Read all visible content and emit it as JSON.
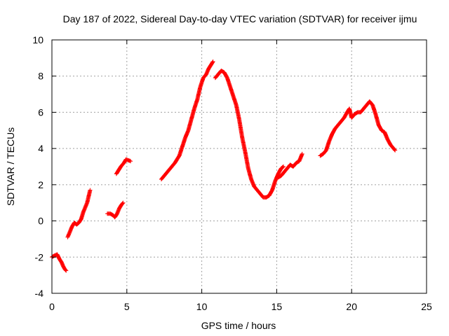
{
  "chart_data": {
    "type": "scatter",
    "title": "Day 187 of 2022, Sidereal Day-to-day VTEC variation (SDTVAR) for receiver ijmu",
    "xlabel": "GPS time / hours",
    "ylabel": "SDTVAR / TECUs",
    "xlim": [
      0,
      25
    ],
    "ylim": [
      -4,
      10
    ],
    "xticks": [
      0,
      5,
      10,
      15,
      20,
      25
    ],
    "yticks": [
      -4,
      -2,
      0,
      2,
      4,
      6,
      8,
      10
    ],
    "xtick_labels": [
      "0",
      "5",
      "10",
      "15",
      "20",
      "25"
    ],
    "ytick_labels": [
      "-4",
      "-2",
      "0",
      "2",
      "4",
      "6",
      "8",
      "10"
    ],
    "grid": true,
    "marker": "plus",
    "colors": {
      "series": "#ff0000",
      "axes": "#000000",
      "grid": "#a0a0a0"
    },
    "series": [
      {
        "name": "SDTVAR",
        "segments": [
          [
            [
              0.0,
              -2.0
            ],
            [
              0.2,
              -1.9
            ],
            [
              0.35,
              -1.85
            ],
            [
              0.5,
              -2.1
            ],
            [
              0.65,
              -2.3
            ],
            [
              0.75,
              -2.5
            ],
            [
              0.85,
              -2.65
            ],
            [
              0.95,
              -2.75
            ]
          ],
          [
            [
              1.05,
              -0.9
            ],
            [
              1.2,
              -0.6
            ],
            [
              1.35,
              -0.3
            ],
            [
              1.5,
              -0.1
            ],
            [
              1.65,
              -0.2
            ],
            [
              1.8,
              -0.1
            ],
            [
              1.95,
              0.1
            ],
            [
              2.1,
              0.5
            ],
            [
              2.25,
              0.8
            ],
            [
              2.35,
              1.0
            ],
            [
              2.45,
              1.35
            ],
            [
              2.55,
              1.7
            ]
          ],
          [
            [
              3.7,
              0.4
            ],
            [
              3.9,
              0.4
            ],
            [
              4.1,
              0.3
            ],
            [
              4.2,
              0.2
            ],
            [
              4.35,
              0.4
            ],
            [
              4.5,
              0.7
            ],
            [
              4.65,
              0.9
            ],
            [
              4.75,
              1.0
            ]
          ],
          [
            [
              4.3,
              2.6
            ],
            [
              4.45,
              2.8
            ],
            [
              4.6,
              3.0
            ],
            [
              4.8,
              3.2
            ],
            [
              4.95,
              3.4
            ],
            [
              5.1,
              3.35
            ],
            [
              5.25,
              3.3
            ]
          ],
          [
            [
              7.3,
              2.3
            ],
            [
              7.6,
              2.6
            ],
            [
              7.9,
              2.9
            ],
            [
              8.2,
              3.2
            ],
            [
              8.5,
              3.6
            ],
            [
              8.7,
              4.1
            ],
            [
              8.9,
              4.6
            ],
            [
              9.1,
              5.0
            ],
            [
              9.3,
              5.6
            ],
            [
              9.5,
              6.2
            ],
            [
              9.7,
              6.7
            ],
            [
              9.9,
              7.4
            ],
            [
              10.1,
              7.9
            ],
            [
              10.3,
              8.1
            ],
            [
              10.45,
              8.4
            ],
            [
              10.6,
              8.6
            ],
            [
              10.75,
              8.8
            ]
          ],
          [
            [
              10.9,
              7.9
            ],
            [
              11.1,
              8.1
            ],
            [
              11.3,
              8.3
            ],
            [
              11.5,
              8.2
            ],
            [
              11.7,
              7.9
            ],
            [
              11.9,
              7.4
            ],
            [
              12.1,
              6.9
            ],
            [
              12.3,
              6.4
            ],
            [
              12.5,
              5.6
            ],
            [
              12.7,
              4.6
            ],
            [
              12.9,
              3.8
            ],
            [
              13.1,
              2.9
            ],
            [
              13.3,
              2.3
            ],
            [
              13.5,
              1.9
            ],
            [
              13.7,
              1.7
            ],
            [
              13.9,
              1.5
            ],
            [
              14.1,
              1.3
            ],
            [
              14.3,
              1.3
            ],
            [
              14.5,
              1.4
            ],
            [
              14.7,
              1.7
            ],
            [
              14.9,
              2.2
            ],
            [
              15.1,
              2.6
            ],
            [
              15.3,
              2.9
            ],
            [
              15.45,
              3.0
            ]
          ],
          [
            [
              15.1,
              2.4
            ],
            [
              15.3,
              2.5
            ],
            [
              15.5,
              2.7
            ],
            [
              15.7,
              2.9
            ],
            [
              15.9,
              3.1
            ],
            [
              16.1,
              3.0
            ],
            [
              16.3,
              3.2
            ],
            [
              16.5,
              3.3
            ],
            [
              16.6,
              3.5
            ],
            [
              16.7,
              3.7
            ]
          ],
          [
            [
              17.9,
              3.6
            ],
            [
              18.1,
              3.7
            ],
            [
              18.3,
              3.9
            ],
            [
              18.5,
              4.4
            ],
            [
              18.7,
              4.8
            ],
            [
              18.9,
              5.1
            ],
            [
              19.1,
              5.3
            ],
            [
              19.3,
              5.5
            ],
            [
              19.5,
              5.7
            ],
            [
              19.7,
              6.0
            ],
            [
              19.85,
              6.2
            ],
            [
              20.0,
              5.7
            ],
            [
              20.2,
              5.9
            ],
            [
              20.4,
              6.0
            ],
            [
              20.6,
              6.0
            ],
            [
              20.8,
              6.2
            ],
            [
              21.0,
              6.4
            ],
            [
              21.2,
              6.6
            ],
            [
              21.4,
              6.4
            ],
            [
              21.6,
              5.9
            ],
            [
              21.8,
              5.3
            ],
            [
              22.0,
              5.0
            ],
            [
              22.2,
              4.9
            ],
            [
              22.4,
              4.5
            ],
            [
              22.6,
              4.2
            ],
            [
              22.8,
              4.0
            ],
            [
              22.9,
              3.9
            ]
          ]
        ]
      }
    ]
  }
}
